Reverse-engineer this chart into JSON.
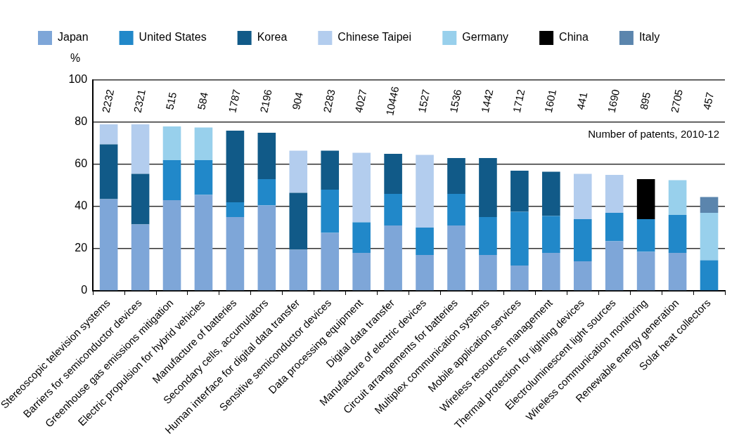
{
  "chart_data": {
    "type": "bar",
    "stacked": true,
    "ylabel": "%",
    "categories": [
      "Stereoscopic television systems",
      "Barriers for semiconductor devices",
      "Greenhouse gas emissions mitigation",
      "Electric propulsion for hybrid vehicles",
      "Manufacture of batteries",
      "Secondary cells, accumulators",
      "Human interface for digital data transfer",
      "Sensitive semiconductor devices",
      "Data processing equipment",
      "Digital data transfer",
      "Manufacture of electric devices",
      "Circuit arrangements for batteries",
      "Multiplex communication systems",
      "Mobile application services",
      "Wireless resources management",
      "Thermal protection for lighting devices",
      "Electroluminescent light sources",
      "Wireless communication monitoring",
      "Renewable energy generation",
      "Solar heat collectors"
    ],
    "series": [
      {
        "name": "Japan",
        "color": "#7ea6d8",
        "values": [
          43.5,
          31.5,
          43,
          45.5,
          35,
          40.5,
          19.5,
          27.5,
          18,
          31,
          17,
          31,
          17,
          12,
          18,
          14,
          23.5,
          18.5,
          18,
          null
        ]
      },
      {
        "name": "United States",
        "color": "#2188c9",
        "values": [
          null,
          null,
          19,
          16.5,
          7,
          12.5,
          null,
          20.5,
          14.5,
          15,
          13,
          15,
          18,
          25.5,
          17.5,
          20,
          13.5,
          15.5,
          18,
          14.5
        ]
      },
      {
        "name": "Korea",
        "color": "#115a88",
        "values": [
          26,
          24,
          null,
          null,
          34,
          22,
          27,
          18.5,
          null,
          19,
          null,
          17,
          28,
          19.5,
          21,
          null,
          null,
          null,
          null,
          null
        ]
      },
      {
        "name": "Chinese Taipei",
        "color": "#b3cdee",
        "values": [
          9.5,
          23.5,
          null,
          null,
          null,
          null,
          20,
          null,
          33,
          null,
          34.5,
          null,
          null,
          null,
          null,
          21.5,
          18,
          null,
          null,
          null
        ]
      },
      {
        "name": "Germany",
        "color": "#98d0ec",
        "values": [
          null,
          null,
          16,
          15.5,
          null,
          null,
          null,
          null,
          null,
          null,
          null,
          null,
          null,
          null,
          null,
          null,
          null,
          null,
          16.5,
          22.5
        ]
      },
      {
        "name": "China",
        "color": "#000000",
        "values": [
          null,
          null,
          null,
          null,
          null,
          null,
          null,
          null,
          null,
          null,
          null,
          null,
          null,
          null,
          null,
          null,
          null,
          19,
          null,
          null
        ]
      },
      {
        "name": "Italy",
        "color": "#5b85ad",
        "values": [
          null,
          null,
          null,
          null,
          null,
          null,
          null,
          null,
          null,
          null,
          null,
          null,
          null,
          null,
          null,
          null,
          null,
          null,
          null,
          7.5
        ]
      }
    ],
    "annotations": [
      "Number of patents, 2010-12",
      "2232",
      "2321",
      "515",
      "584",
      "1787",
      "2196",
      "904",
      "2283",
      "4027",
      "10446",
      "1527",
      "1536",
      "1442",
      "1712",
      "1601",
      "441",
      "1690",
      "895",
      "2705",
      "457"
    ],
    "ylim": [
      0,
      100
    ],
    "yticks": [
      0,
      20,
      40,
      60,
      80,
      100
    ],
    "grid": "y",
    "legend": "top"
  }
}
